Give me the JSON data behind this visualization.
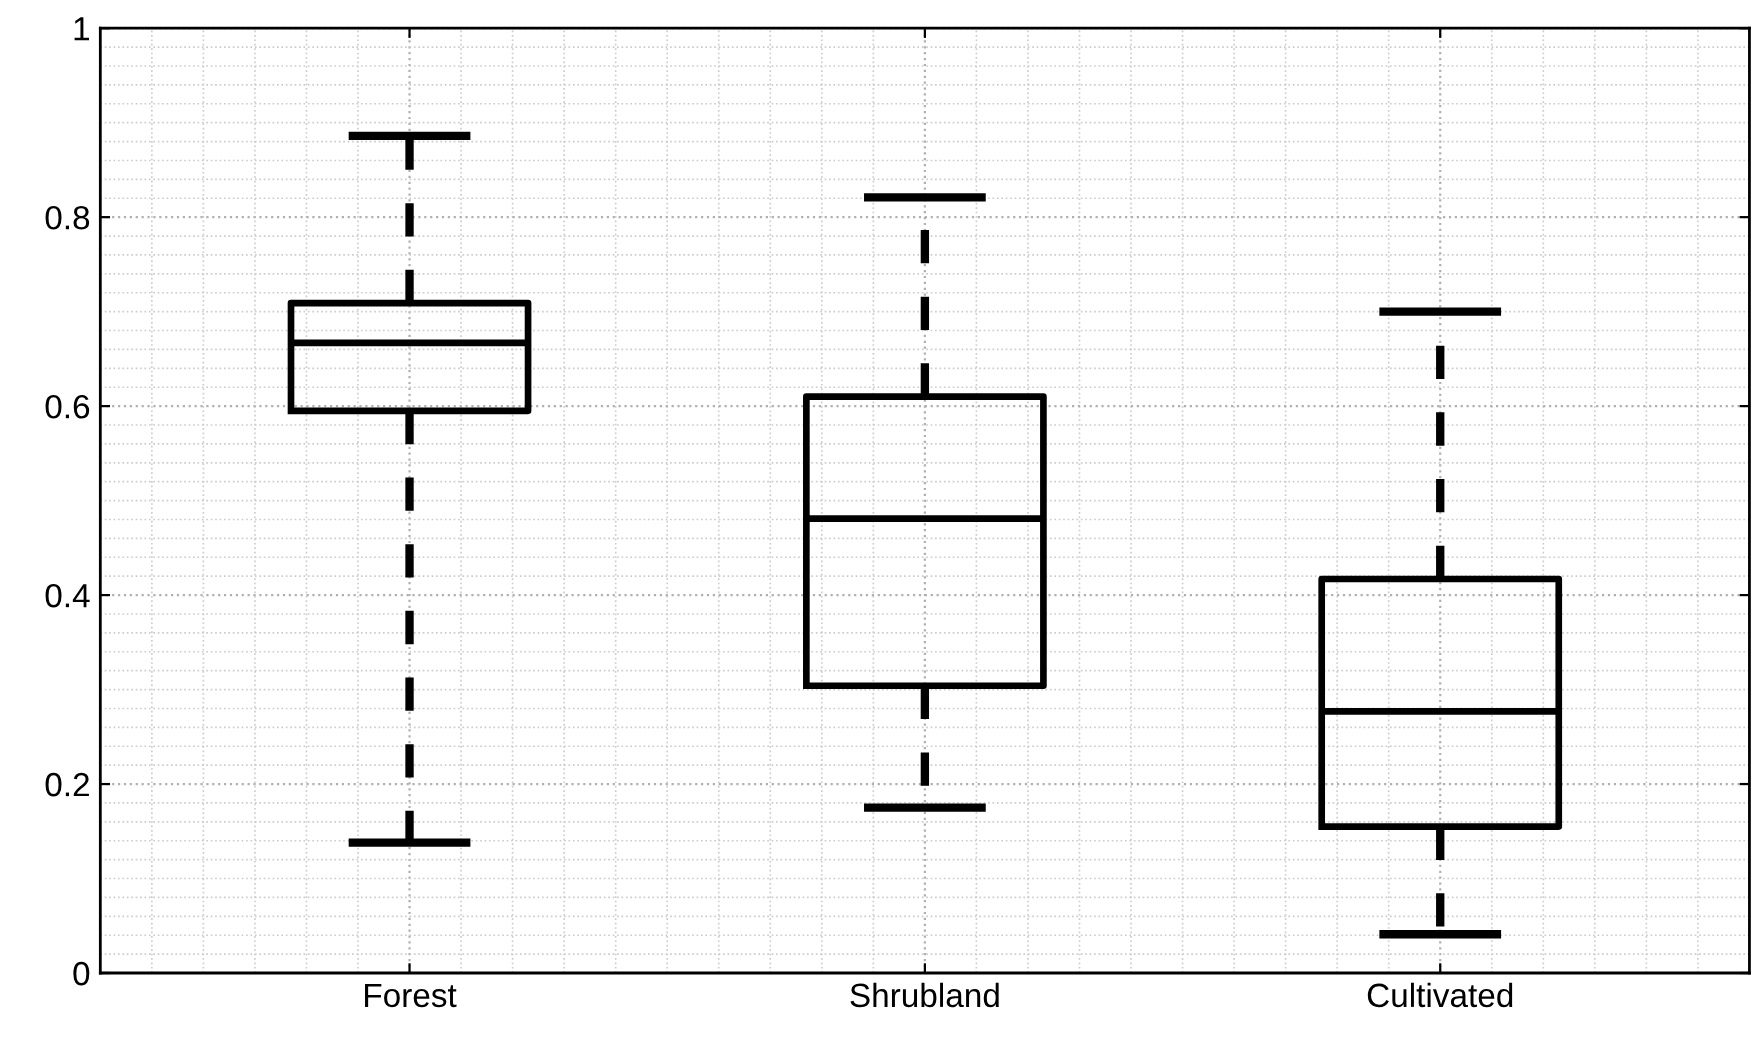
{
  "chart_data": {
    "type": "box",
    "categories": [
      "Forest",
      "Shrubland",
      "Cultivated"
    ],
    "boxes": [
      {
        "low": 0.138,
        "q1": 0.595,
        "median": 0.667,
        "q3": 0.709,
        "high": 0.886
      },
      {
        "low": 0.175,
        "q1": 0.304,
        "median": 0.481,
        "q3": 0.61,
        "high": 0.821
      },
      {
        "low": 0.041,
        "q1": 0.155,
        "median": 0.277,
        "q3": 0.417,
        "high": 0.7
      }
    ],
    "color": "#000000",
    "line_style": "dashed",
    "ylim": [
      0,
      1
    ],
    "yticks": [
      0,
      0.2,
      0.4,
      0.6,
      0.8,
      1
    ],
    "grid": true
  }
}
